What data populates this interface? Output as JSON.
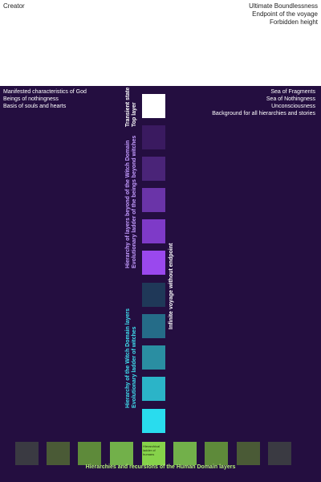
{
  "header": {
    "left": "Creator",
    "right": [
      "Ultimate Boundlessness",
      "Endpoint of the voyage",
      "Forbidden height"
    ]
  },
  "panel": {
    "left_annotations": [
      "Manifested characteristics of God",
      "Beings of nothingness",
      "Basis of souls and hearts"
    ],
    "right_annotations": [
      "Sea of Fragments",
      "Sea of Nothingness",
      "Unconsciousness",
      "Background for all hierarchies and stories"
    ],
    "top_tier": [
      "Transient state",
      "Top layer"
    ],
    "beyond_witches": [
      "Hierarchy of layers beyond of the Witch Domain",
      "Evolutionary ladder of the beings beyond witches"
    ],
    "voyage": "Infinite voyage without endpoint",
    "witch_domain": [
      "Hierarchy of the Witch Domain layers",
      "Evolutionary ladder of witches"
    ],
    "center_label": [
      "Hierarchical",
      "ladder of",
      "humans"
    ],
    "bottom_title": "Hierarchies and recursions of the Human Domain layers"
  },
  "colors": {
    "background": "#240e40",
    "column": [
      "#ffffff",
      "#3a1a60",
      "#4a2478",
      "#6a34a8",
      "#7e3ac8",
      "#9a48ee",
      "#1f3858",
      "#256c88",
      "#2a8ea2",
      "#2bb4c8",
      "#29dcee"
    ],
    "row": [
      "#3a3a42",
      "#4a5a36",
      "#5e8a3a",
      "#72b04a",
      "#86d24a",
      "#72b04a",
      "#5e8a3a",
      "#4a5a36",
      "#3a3a42"
    ],
    "purple_text": "#c49cff",
    "cyan_text": "#40e0f0",
    "green_text": "#b4f077"
  }
}
